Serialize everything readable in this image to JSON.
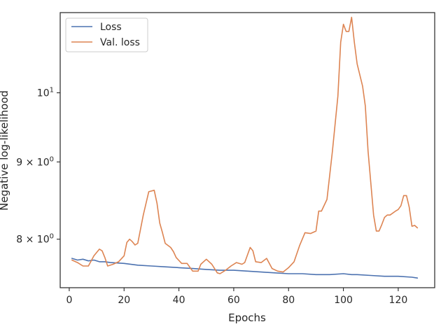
{
  "chart_data": {
    "type": "line",
    "xlabel": "Epochs",
    "ylabel": "Negative log-likelihood",
    "yscale": "log",
    "xlim": [
      -3.3,
      133.3
    ],
    "ylim": [
      7.43,
      11.3
    ],
    "grid": false,
    "legend": "top-left",
    "x_ticks": [
      {
        "value": 0,
        "label": "0"
      },
      {
        "value": 20,
        "label": "20"
      },
      {
        "value": 40,
        "label": "40"
      },
      {
        "value": 60,
        "label": "60"
      },
      {
        "value": 80,
        "label": "80"
      },
      {
        "value": 100,
        "label": "100"
      },
      {
        "value": 120,
        "label": "120"
      }
    ],
    "y_ticks": [
      {
        "value": 8,
        "mantissa": "8",
        "exp": "0"
      },
      {
        "value": 9,
        "mantissa": "9",
        "exp": "0"
      },
      {
        "value": 10,
        "mantissa": "",
        "exp": "1"
      }
    ],
    "series": [
      {
        "name": "Loss",
        "color": "#4c72b0",
        "points": [
          [
            1,
            7.77
          ],
          [
            3,
            7.75
          ],
          [
            5,
            7.76
          ],
          [
            7,
            7.74
          ],
          [
            9,
            7.75
          ],
          [
            11,
            7.73
          ],
          [
            13,
            7.73
          ],
          [
            15,
            7.72
          ],
          [
            20,
            7.71
          ],
          [
            25,
            7.69
          ],
          [
            30,
            7.68
          ],
          [
            35,
            7.67
          ],
          [
            40,
            7.66
          ],
          [
            45,
            7.65
          ],
          [
            50,
            7.64
          ],
          [
            55,
            7.63
          ],
          [
            60,
            7.63
          ],
          [
            65,
            7.62
          ],
          [
            70,
            7.61
          ],
          [
            75,
            7.6
          ],
          [
            80,
            7.59
          ],
          [
            85,
            7.59
          ],
          [
            90,
            7.58
          ],
          [
            95,
            7.58
          ],
          [
            100,
            7.59
          ],
          [
            103,
            7.58
          ],
          [
            105,
            7.58
          ],
          [
            110,
            7.57
          ],
          [
            115,
            7.56
          ],
          [
            120,
            7.56
          ],
          [
            125,
            7.55
          ],
          [
            127,
            7.54
          ]
        ]
      },
      {
        "name": "Val. loss",
        "color": "#dd8452",
        "points": [
          [
            1,
            7.75
          ],
          [
            3,
            7.72
          ],
          [
            5,
            7.68
          ],
          [
            7,
            7.68
          ],
          [
            9,
            7.8
          ],
          [
            11,
            7.88
          ],
          [
            12,
            7.86
          ],
          [
            13,
            7.78
          ],
          [
            14,
            7.68
          ],
          [
            16,
            7.7
          ],
          [
            18,
            7.73
          ],
          [
            20,
            7.8
          ],
          [
            21,
            7.96
          ],
          [
            22,
            8.0
          ],
          [
            23,
            7.97
          ],
          [
            24,
            7.93
          ],
          [
            25,
            7.95
          ],
          [
            27,
            8.3
          ],
          [
            29,
            8.6
          ],
          [
            31,
            8.62
          ],
          [
            32,
            8.45
          ],
          [
            33,
            8.2
          ],
          [
            34,
            8.08
          ],
          [
            35,
            7.95
          ],
          [
            37,
            7.9
          ],
          [
            38,
            7.85
          ],
          [
            39,
            7.78
          ],
          [
            41,
            7.71
          ],
          [
            43,
            7.71
          ],
          [
            45,
            7.62
          ],
          [
            47,
            7.62
          ],
          [
            48,
            7.7
          ],
          [
            50,
            7.76
          ],
          [
            52,
            7.7
          ],
          [
            54,
            7.6
          ],
          [
            55,
            7.59
          ],
          [
            57,
            7.63
          ],
          [
            59,
            7.68
          ],
          [
            61,
            7.72
          ],
          [
            63,
            7.7
          ],
          [
            64,
            7.72
          ],
          [
            66,
            7.9
          ],
          [
            67,
            7.86
          ],
          [
            68,
            7.73
          ],
          [
            70,
            7.72
          ],
          [
            72,
            7.77
          ],
          [
            74,
            7.65
          ],
          [
            76,
            7.62
          ],
          [
            78,
            7.61
          ],
          [
            80,
            7.66
          ],
          [
            82,
            7.73
          ],
          [
            84,
            7.92
          ],
          [
            86,
            8.08
          ],
          [
            88,
            8.07
          ],
          [
            90,
            8.1
          ],
          [
            91,
            8.35
          ],
          [
            92,
            8.35
          ],
          [
            94,
            8.5
          ],
          [
            96,
            9.15
          ],
          [
            98,
            9.95
          ],
          [
            99,
            10.8
          ],
          [
            100,
            11.1
          ],
          [
            101,
            10.98
          ],
          [
            102,
            10.98
          ],
          [
            103,
            11.22
          ],
          [
            104,
            10.8
          ],
          [
            105,
            10.45
          ],
          [
            107,
            10.1
          ],
          [
            108,
            9.8
          ],
          [
            109,
            9.15
          ],
          [
            111,
            8.3
          ],
          [
            112,
            8.1
          ],
          [
            113,
            8.1
          ],
          [
            114,
            8.18
          ],
          [
            115,
            8.27
          ],
          [
            116,
            8.3
          ],
          [
            117,
            8.3
          ],
          [
            119,
            8.35
          ],
          [
            120,
            8.37
          ],
          [
            121,
            8.42
          ],
          [
            122,
            8.55
          ],
          [
            123,
            8.55
          ],
          [
            124,
            8.4
          ],
          [
            125,
            8.16
          ],
          [
            126,
            8.17
          ],
          [
            127,
            8.14
          ]
        ]
      }
    ]
  }
}
